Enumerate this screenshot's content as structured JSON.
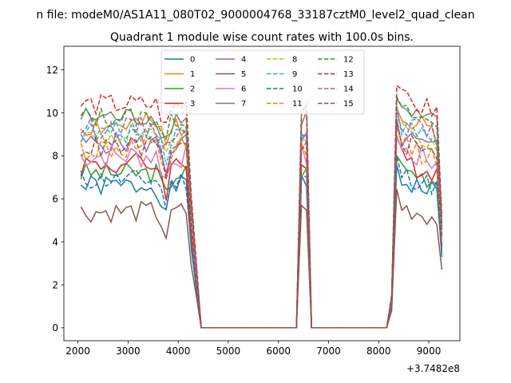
{
  "chart_data": {
    "type": "line",
    "suptitle": "n file: modeM0/AS1A11_080T02_9000004768_33187cztM0_level2_quad_clean",
    "title": "Quadrant 1 module wise count rates with 100.0s bins.",
    "xlabel": "",
    "ylabel": "",
    "offset_text": "+3.7482e8",
    "xlim": [
      1720,
      9620
    ],
    "ylim": [
      -0.6,
      13.1
    ],
    "xticks": [
      2000,
      3000,
      4000,
      5000,
      6000,
      7000,
      8000,
      9000
    ],
    "xtick_labels": [
      "2000",
      "3000",
      "4000",
      "5000",
      "6000",
      "7000",
      "8000",
      "9000"
    ],
    "yticks": [
      0,
      2,
      4,
      6,
      8,
      10,
      12
    ],
    "ytick_labels": [
      "0",
      "2",
      "4",
      "6",
      "8",
      "10",
      "12"
    ],
    "legend_location": "upper center",
    "segments": [
      {
        "x_start": 2060,
        "x_end": 4160,
        "decline_to": 4460
      },
      {
        "x_start": 6360,
        "x_end": 6560,
        "decline_to": 6660
      },
      {
        "x_start": 8160,
        "x_end": 9260
      }
    ],
    "series": [
      {
        "name": "0",
        "color": "#1f77b4",
        "dash": "solid",
        "level": 6.6,
        "amp": 0.5,
        "seed": 1
      },
      {
        "name": "1",
        "color": "#ff7f0e",
        "dash": "solid",
        "level": 9.4,
        "amp": 0.6,
        "seed": 2
      },
      {
        "name": "2",
        "color": "#2ca02c",
        "dash": "solid",
        "level": 7.2,
        "amp": 0.5,
        "seed": 3
      },
      {
        "name": "3",
        "color": "#d62728",
        "dash": "solid",
        "level": 7.6,
        "amp": 0.6,
        "seed": 4
      },
      {
        "name": "4",
        "color": "#9467bd",
        "dash": "solid",
        "level": 8.6,
        "amp": 0.5,
        "seed": 5
      },
      {
        "name": "5",
        "color": "#8c564b",
        "dash": "solid",
        "level": 5.4,
        "amp": 0.5,
        "seed": 6
      },
      {
        "name": "6",
        "color": "#e377c2",
        "dash": "solid",
        "level": 8.0,
        "amp": 0.6,
        "seed": 7
      },
      {
        "name": "7",
        "color": "#7f7f7f",
        "dash": "solid",
        "level": 9.8,
        "amp": 0.5,
        "seed": 8
      },
      {
        "name": "8",
        "color": "#bcbd22",
        "dash": "dashed",
        "level": 8.9,
        "amp": 0.5,
        "seed": 9
      },
      {
        "name": "9",
        "color": "#17becf",
        "dash": "dashed",
        "level": 9.1,
        "amp": 0.5,
        "seed": 10
      },
      {
        "name": "10",
        "color": "#1f77b4",
        "dash": "dashed",
        "level": 6.9,
        "amp": 0.5,
        "seed": 11
      },
      {
        "name": "11",
        "color": "#ff7f0e",
        "dash": "dashed",
        "level": 8.3,
        "amp": 0.6,
        "seed": 12
      },
      {
        "name": "12",
        "color": "#2ca02c",
        "dash": "dashed",
        "level": 9.8,
        "amp": 0.5,
        "seed": 13
      },
      {
        "name": "13",
        "color": "#d62728",
        "dash": "dashed",
        "level": 10.4,
        "amp": 0.5,
        "seed": 14
      },
      {
        "name": "14",
        "color": "#9467bd",
        "dash": "dashed",
        "level": 9.3,
        "amp": 0.5,
        "seed": 15
      },
      {
        "name": "15",
        "color": "#8c564b",
        "dash": "dashed",
        "level": 8.4,
        "amp": 0.5,
        "seed": 16
      }
    ]
  }
}
